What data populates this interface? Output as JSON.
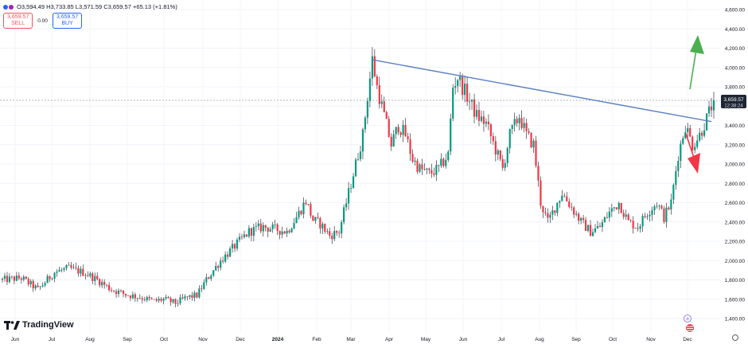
{
  "header": {
    "ohlc": "O3,594.49 H3,733.85 L3,571.59 C3,659.57 +65.13 (+1.81%)",
    "dot_colors": [
      "#2962ff",
      "#9c27b0"
    ]
  },
  "trade_panel": {
    "sell_price": "3,659.57",
    "sell_label": "SELL",
    "spread": "0.00",
    "buy_price": "3,659.57",
    "buy_label": "BUY"
  },
  "branding": {
    "logo_text": "TradingView"
  },
  "price_marker": {
    "price": "3,659.57",
    "countdown": "12:38:24"
  },
  "colors": {
    "up": "#089981",
    "down": "#f23645",
    "wick": "#131722",
    "trendline": "#5b7fc0",
    "arrow_up": "#4caf50",
    "arrow_down": "#f23645"
  },
  "chart_data": {
    "type": "candlestick",
    "y_ticks": [
      "1,400.00",
      "1,600.00",
      "1,800.00",
      "2,000.00",
      "2,200.00",
      "2,400.00",
      "2,600.00",
      "2,800.00",
      "3,000.00",
      "3,200.00",
      "3,400.00",
      "3,600.00",
      "3,800.00",
      "4,000.00",
      "4,200.00",
      "4,400.00",
      "4,600.00"
    ],
    "x_ticks": [
      "Jun",
      "Jul",
      "Aug",
      "Sep",
      "Oct",
      "Nov",
      "Dec",
      "2024",
      "Feb",
      "Mar",
      "Apr",
      "May",
      "Jun",
      "Jul",
      "Aug",
      "Sep",
      "Oct",
      "Nov",
      "Dec"
    ],
    "ylim": [
      1300,
      4700
    ],
    "last_close": 3659.57,
    "price_path": [
      [
        0,
        1800
      ],
      [
        8,
        1820
      ],
      [
        15,
        1700
      ],
      [
        22,
        1880
      ],
      [
        28,
        1920
      ],
      [
        35,
        1870
      ],
      [
        40,
        1800
      ],
      [
        46,
        1700
      ],
      [
        52,
        1650
      ],
      [
        58,
        1620
      ],
      [
        64,
        1580
      ],
      [
        68,
        1600
      ],
      [
        73,
        1560
      ],
      [
        78,
        1620
      ],
      [
        82,
        1640
      ],
      [
        86,
        1800
      ],
      [
        92,
        2000
      ],
      [
        98,
        2150
      ],
      [
        104,
        2300
      ],
      [
        110,
        2350
      ],
      [
        116,
        2320
      ],
      [
        120,
        2300
      ],
      [
        124,
        2450
      ],
      [
        128,
        2620
      ],
      [
        131,
        2420
      ],
      [
        134,
        2380
      ],
      [
        138,
        2260
      ],
      [
        142,
        2300
      ],
      [
        146,
        2700
      ],
      [
        149,
        3000
      ],
      [
        152,
        3300
      ],
      [
        154,
        3700
      ],
      [
        156,
        4080
      ],
      [
        158,
        3800
      ],
      [
        161,
        3500
      ],
      [
        164,
        3200
      ],
      [
        167,
        3400
      ],
      [
        170,
        3300
      ],
      [
        173,
        3050
      ],
      [
        176,
        2950
      ],
      [
        180,
        2900
      ],
      [
        184,
        2950
      ],
      [
        188,
        3100
      ],
      [
        190,
        3800
      ],
      [
        192,
        3900
      ],
      [
        194,
        3800
      ],
      [
        197,
        3650
      ],
      [
        200,
        3500
      ],
      [
        204,
        3420
      ],
      [
        208,
        3150
      ],
      [
        211,
        2950
      ],
      [
        214,
        3300
      ],
      [
        218,
        3500
      ],
      [
        221,
        3300
      ],
      [
        224,
        3200
      ],
      [
        227,
        2600
      ],
      [
        230,
        2400
      ],
      [
        233,
        2550
      ],
      [
        236,
        2700
      ],
      [
        240,
        2550
      ],
      [
        244,
        2400
      ],
      [
        248,
        2300
      ],
      [
        252,
        2350
      ],
      [
        256,
        2500
      ],
      [
        260,
        2600
      ],
      [
        264,
        2400
      ],
      [
        268,
        2350
      ],
      [
        272,
        2500
      ],
      [
        276,
        2600
      ],
      [
        279,
        2450
      ],
      [
        282,
        2600
      ],
      [
        285,
        3100
      ],
      [
        288,
        3400
      ],
      [
        291,
        3200
      ],
      [
        294,
        3300
      ],
      [
        297,
        3470
      ],
      [
        300,
        3660
      ]
    ],
    "trendline": [
      [
        156,
        4080
      ],
      [
        299,
        3440
      ]
    ],
    "annotations": [
      "arrow-up",
      "arrow-down"
    ]
  }
}
